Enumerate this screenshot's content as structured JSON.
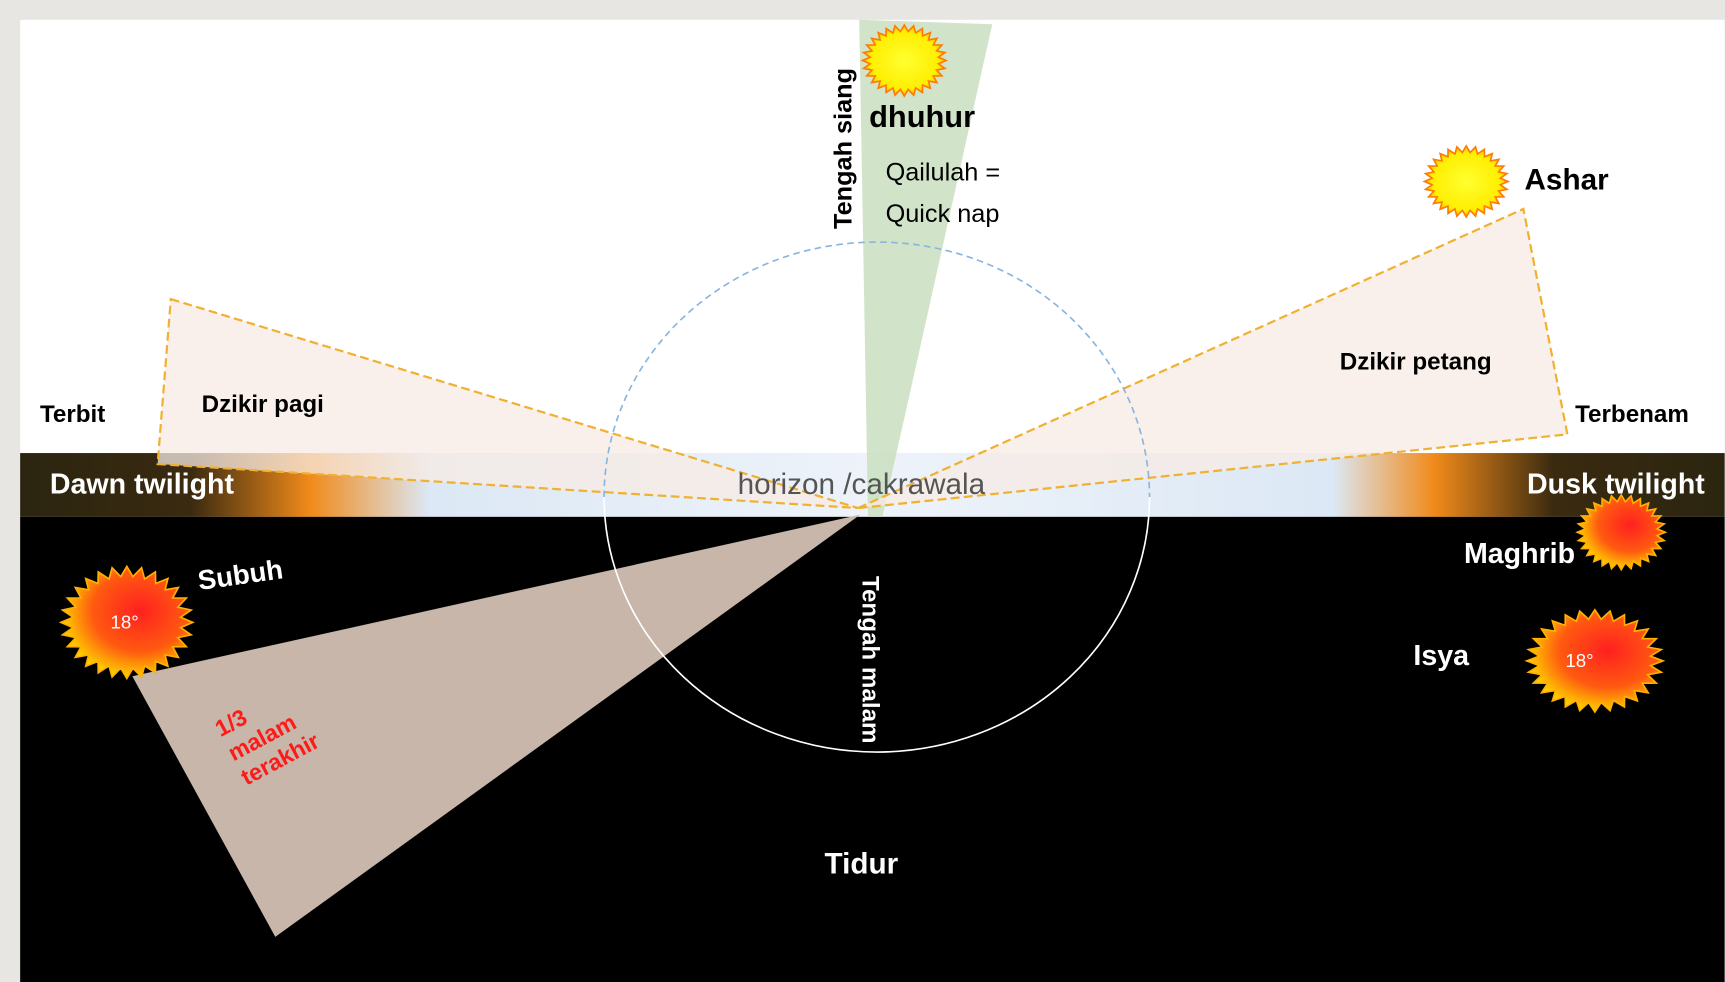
{
  "sky": {
    "noon": "Tengah siang",
    "dhuhur": "dhuhur",
    "nap_line1": "Qailulah =",
    "nap_line2": "Quick nap",
    "ashar": "Ashar",
    "sunrise": "Terbit",
    "morning_dhikr": "Dzikir pagi",
    "evening_dhikr": "Dzikir petang",
    "sunset": "Terbenam"
  },
  "horizon": {
    "dawn": "Dawn twilight",
    "label": "horizon /cakrawala",
    "dusk": "Dusk twilight"
  },
  "night": {
    "subuh": "Subuh",
    "subuh_angle": "18°",
    "maghrib": "Maghrib",
    "isya": "Isya",
    "isya_angle": "18°",
    "midnight": "Tengah malam",
    "last_third_line1": "1/3",
    "last_third_line2": "malam",
    "last_third_line3": "terakhir",
    "sleep": "Tidur"
  }
}
